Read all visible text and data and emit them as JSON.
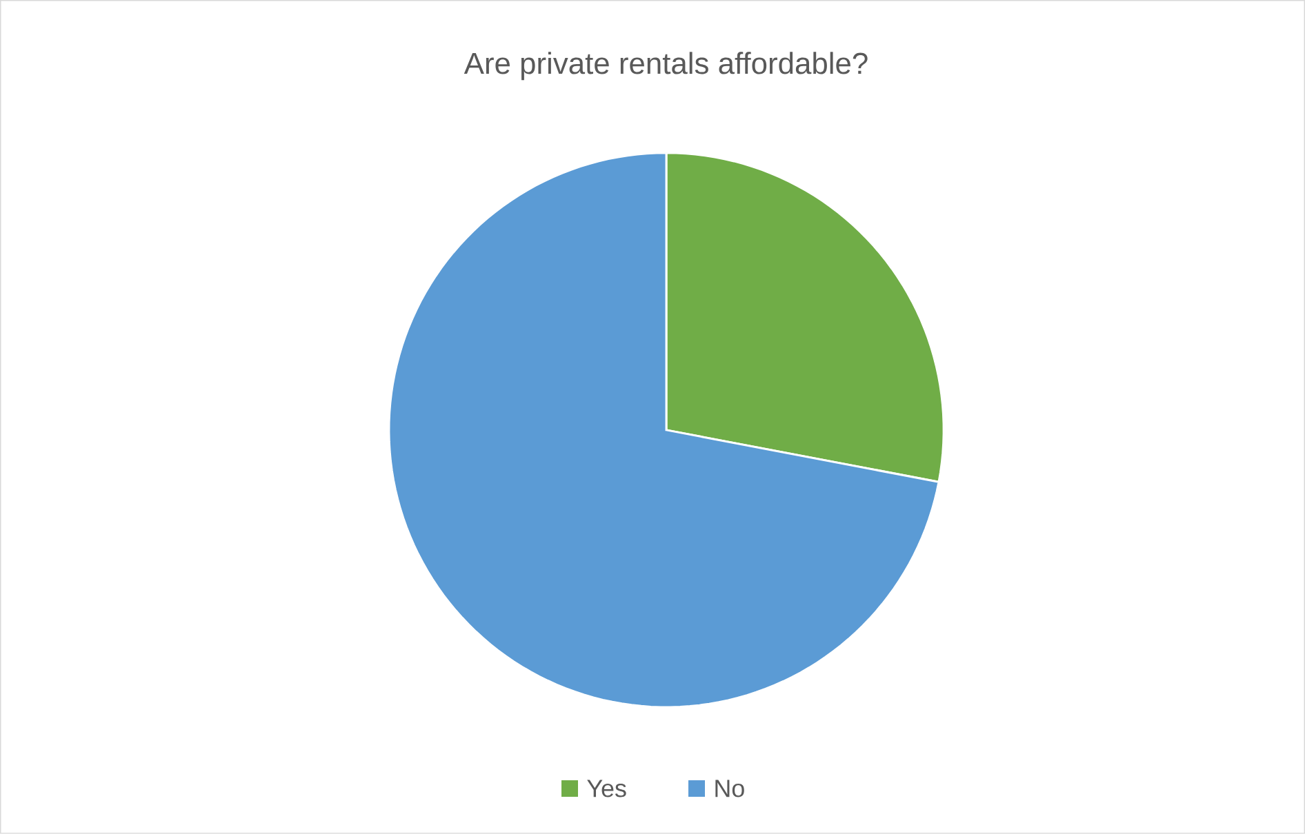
{
  "chart_data": {
    "type": "pie",
    "title": "Are private rentals affordable?",
    "categories": [
      "Yes",
      "No"
    ],
    "values": [
      28,
      72
    ],
    "colors": [
      "#70ad47",
      "#5b9bd5"
    ],
    "legend": "bottom"
  }
}
